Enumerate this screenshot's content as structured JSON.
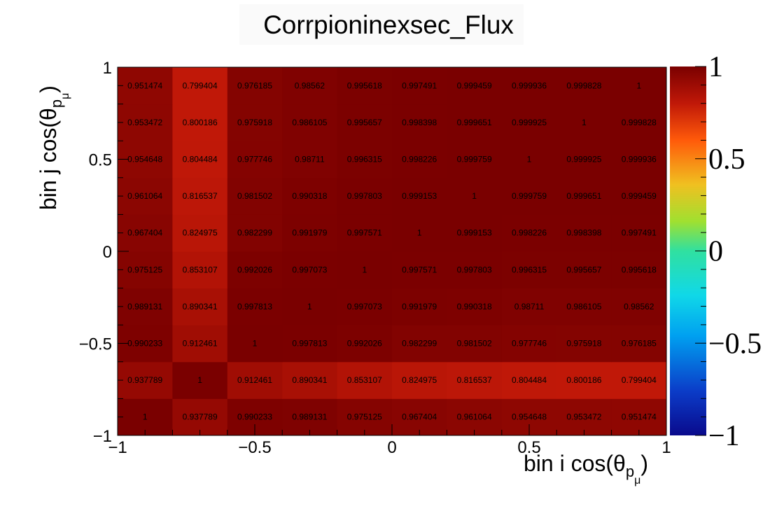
{
  "chart_data": {
    "type": "heatmap",
    "title": "Corrpioninexsec_Flux",
    "xlabel": "bin i cos(θ",
    "ylabel": "bin j cos(θ",
    "label_subscript": "p",
    "label_subsubscript": "μ",
    "xlim": [
      -1,
      1
    ],
    "ylim": [
      -1,
      1
    ],
    "zlim": [
      -1,
      1
    ],
    "x_ticks": [
      "−1",
      "−0.5",
      "0",
      "0.5",
      "1"
    ],
    "y_ticks": [
      "−1",
      "−0.5",
      "0",
      "0.5",
      "1"
    ],
    "z_ticks": [
      "−1",
      "−0.5",
      "0",
      "0.5",
      "1"
    ],
    "x_tick_values": [
      -1,
      -0.5,
      0,
      0.5,
      1
    ],
    "y_tick_values": [
      -1,
      -0.5,
      0,
      0.5,
      1
    ],
    "z_tick_values": [
      -1,
      -0.5,
      0,
      0.5,
      1
    ],
    "nbins_x": 10,
    "nbins_y": 10,
    "colormap": "rainbow",
    "rows": [
      [
        "1",
        "0.937789",
        "0.990233",
        "0.989131",
        "0.975125",
        "0.967404",
        "0.961064",
        "0.954648",
        "0.953472",
        "0.951474"
      ],
      [
        "0.937789",
        "1",
        "0.912461",
        "0.890341",
        "0.853107",
        "0.824975",
        "0.816537",
        "0.804484",
        "0.800186",
        "0.799404"
      ],
      [
        "0.990233",
        "0.912461",
        "1",
        "0.997813",
        "0.992026",
        "0.982299",
        "0.981502",
        "0.977746",
        "0.975918",
        "0.976185"
      ],
      [
        "0.989131",
        "0.890341",
        "0.997813",
        "1",
        "0.997073",
        "0.991979",
        "0.990318",
        "0.98711",
        "0.986105",
        "0.98562"
      ],
      [
        "0.975125",
        "0.853107",
        "0.992026",
        "0.997073",
        "1",
        "0.997571",
        "0.997803",
        "0.996315",
        "0.995657",
        "0.995618"
      ],
      [
        "0.967404",
        "0.824975",
        "0.982299",
        "0.991979",
        "0.997571",
        "1",
        "0.999153",
        "0.998226",
        "0.998398",
        "0.997491"
      ],
      [
        "0.961064",
        "0.816537",
        "0.981502",
        "0.990318",
        "0.997803",
        "0.999153",
        "1",
        "0.999759",
        "0.999651",
        "0.999459"
      ],
      [
        "0.954648",
        "0.804484",
        "0.977746",
        "0.98711",
        "0.996315",
        "0.998226",
        "0.999759",
        "1",
        "0.999925",
        "0.999936"
      ],
      [
        "0.953472",
        "0.800186",
        "0.975918",
        "0.986105",
        "0.995657",
        "0.998398",
        "0.999651",
        "0.999925",
        "1",
        "0.999828"
      ],
      [
        "0.951474",
        "0.799404",
        "0.976185",
        "0.98562",
        "0.995618",
        "0.997491",
        "0.999459",
        "0.999936",
        "0.999828",
        "1"
      ]
    ]
  }
}
